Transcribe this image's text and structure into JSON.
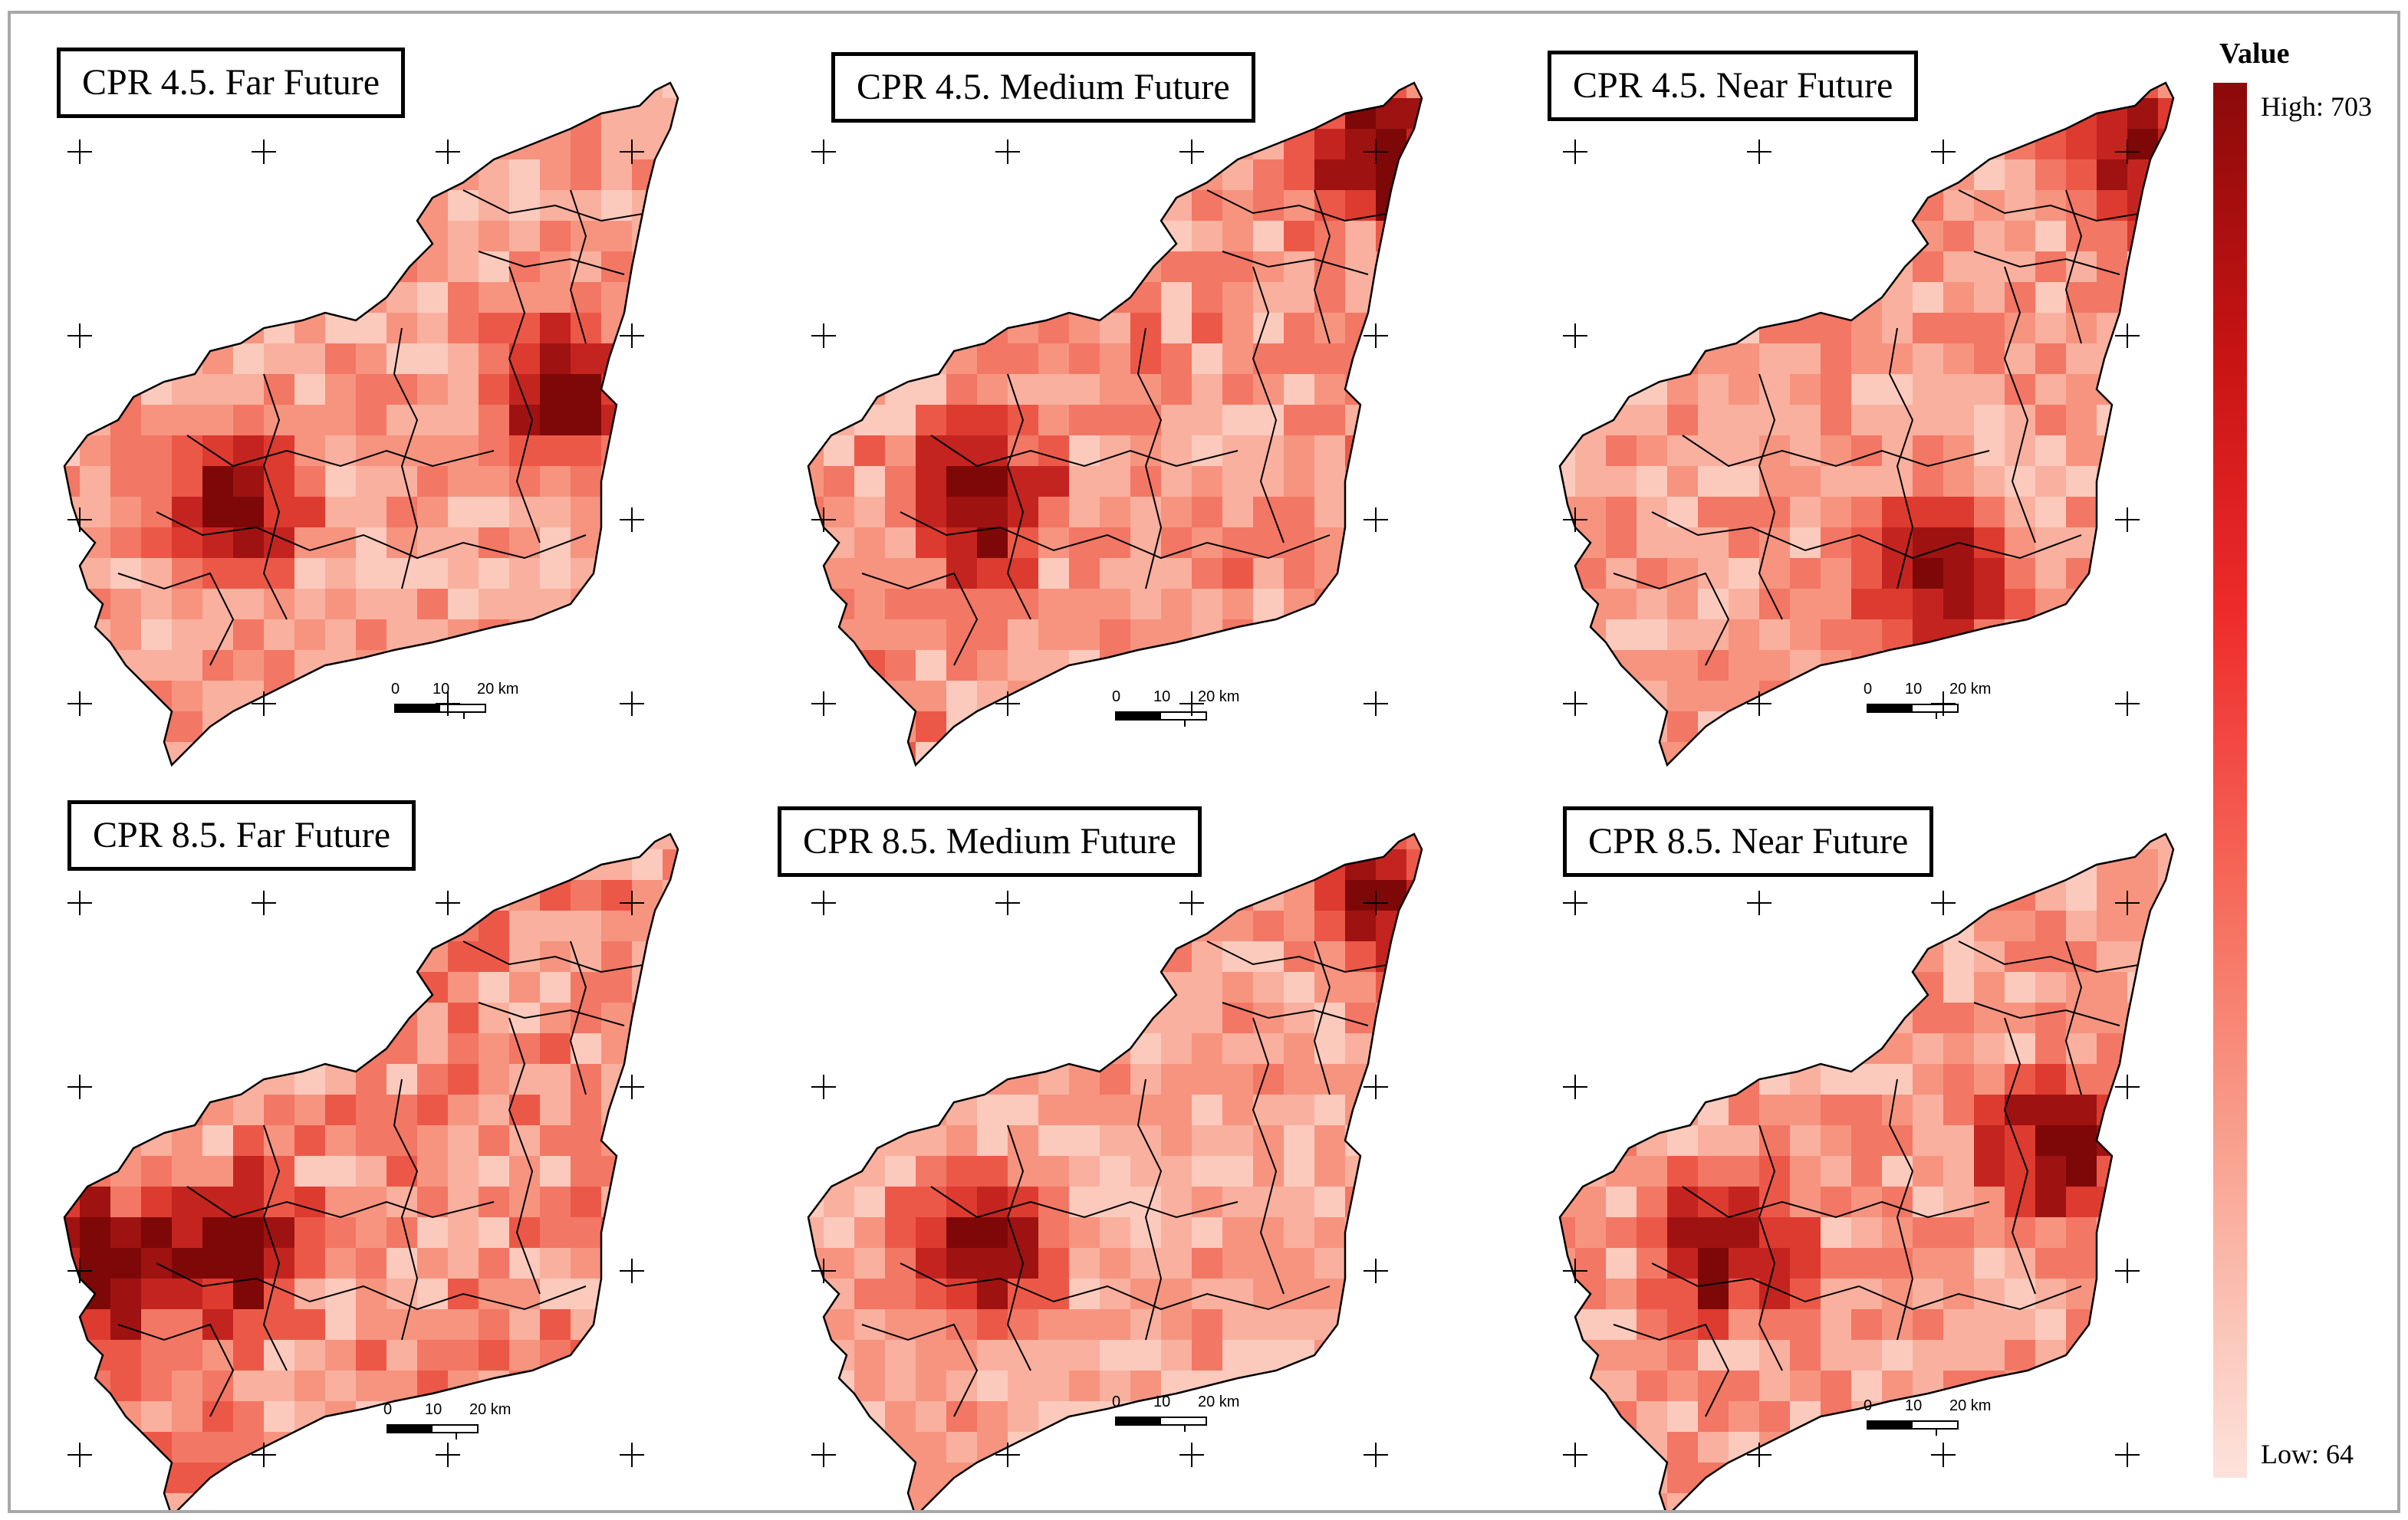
{
  "panels": [
    {
      "title": "CPR 4.5. Far Future",
      "hotspots": [
        "west-center",
        "east-upper"
      ],
      "intensity": 0.7
    },
    {
      "title": "CPR 4.5. Medium Future",
      "hotspots": [
        "west-center",
        "northeast"
      ],
      "intensity": 0.85
    },
    {
      "title": "CPR 4.5. Near Future",
      "hotspots": [
        "south-center",
        "northeast"
      ],
      "intensity": 0.65
    },
    {
      "title": "CPR 8.5. Far Future",
      "hotspots": [
        "west-center",
        "far-west"
      ],
      "intensity": 0.9
    },
    {
      "title": "CPR 8.5. Medium Future",
      "hotspots": [
        "west-center",
        "northeast"
      ],
      "intensity": 0.6
    },
    {
      "title": "CPR 8.5. Near Future",
      "hotspots": [
        "west-center",
        "east-upper"
      ],
      "intensity": 0.75
    }
  ],
  "scalebar": {
    "l0": "0",
    "l1": "10",
    "l2": "20 km"
  },
  "legend": {
    "title": "Value",
    "high_label": "High: 703",
    "low_label": "Low: 64",
    "color_high": "#8b0a0a",
    "color_low": "#fde3dc"
  },
  "colors": {
    "frame": "#a8a8a8",
    "outline": "#000000"
  }
}
